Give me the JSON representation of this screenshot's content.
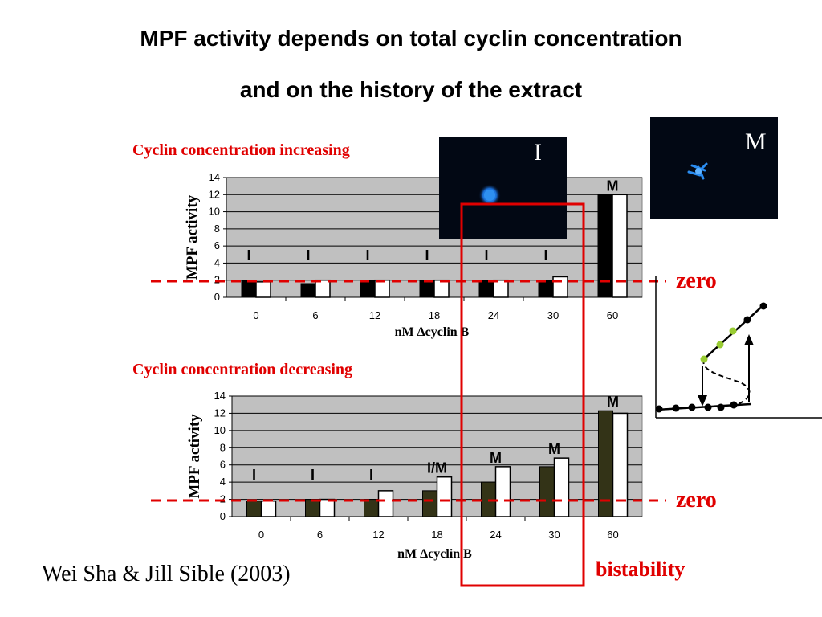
{
  "slide": {
    "title_line1": "MPF activity depends on total cyclin concentration",
    "title_line2": "and on the history of the extract",
    "zero_label": "zero",
    "bistability_label": "bistability",
    "citation": "Wei Sha & Jill Sible (2003)",
    "photo_i_label": "I",
    "photo_m_label": "M"
  },
  "colors": {
    "accent_red": "#e00000",
    "plot_background": "#c0c0c0",
    "bar_increasing": "#000000",
    "bar_decreasing": "#333317",
    "bar_second": "#ffffff",
    "bistable_point": "#99cc33"
  },
  "chart_data": [
    {
      "type": "bar",
      "title": "Cyclin concentration increasing",
      "xlabel": "nM Δcyclin B",
      "ylabel": "MPF activity",
      "ylim": [
        0,
        14
      ],
      "yticks": [
        0,
        2,
        4,
        6,
        8,
        10,
        12,
        14
      ],
      "categories": [
        "0",
        "6",
        "12",
        "18",
        "24",
        "30",
        "60"
      ],
      "series": [
        {
          "values": [
            2,
            1.6,
            2,
            2,
            2,
            2,
            12
          ]
        },
        {
          "values": [
            1.8,
            2,
            2,
            2,
            2,
            2.4,
            12
          ]
        }
      ],
      "phase_labels": [
        "I",
        "I",
        "I",
        "I",
        "I",
        "I",
        "M"
      ],
      "grid": true
    },
    {
      "type": "bar",
      "title": "Cyclin concentration decreasing",
      "xlabel": "nM Δcyclin B",
      "ylabel": "MPF activity",
      "ylim": [
        0,
        14
      ],
      "yticks": [
        0,
        2,
        4,
        6,
        8,
        10,
        12,
        14
      ],
      "categories": [
        "0",
        "6",
        "12",
        "18",
        "24",
        "30",
        "60"
      ],
      "series": [
        {
          "values": [
            1.8,
            2,
            2,
            3,
            4,
            5.8,
            12.3
          ]
        },
        {
          "values": [
            1.8,
            2,
            3,
            4.6,
            5.8,
            6.8,
            12
          ]
        }
      ],
      "phase_labels": [
        "I",
        "I",
        "I",
        "I/M",
        "M",
        "M",
        "M"
      ],
      "grid": true
    }
  ]
}
